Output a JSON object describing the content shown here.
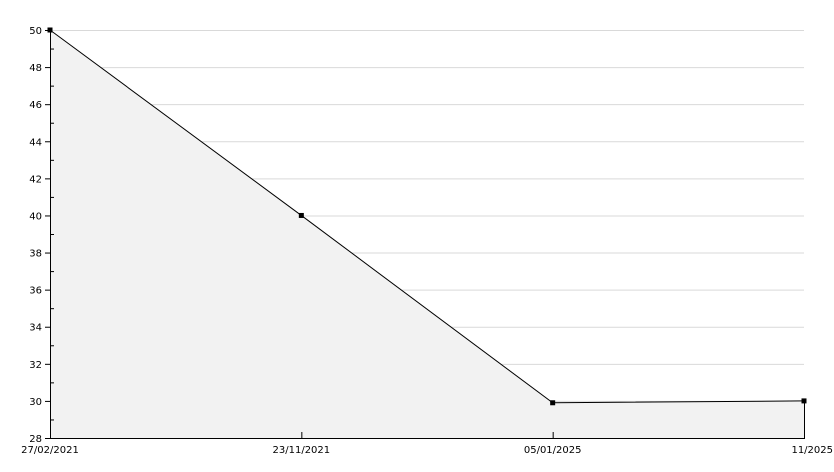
{
  "chart_data": {
    "type": "area",
    "categories": [
      "27/02/2021",
      "23/11/2021",
      "05/01/2025",
      "11/2025"
    ],
    "values": [
      50,
      40,
      29.9,
      30
    ],
    "title": "",
    "xlabel": "",
    "ylabel": "",
    "ylim": [
      28,
      50
    ],
    "yticks": [
      "28",
      "30",
      "32",
      "34",
      "36",
      "38",
      "40",
      "42",
      "44",
      "46",
      "48",
      "50"
    ],
    "grid": true,
    "legend": "none",
    "colors": {
      "line": "#000000",
      "fill": "#f2f2f2",
      "grid": "#d9d9d9"
    }
  }
}
